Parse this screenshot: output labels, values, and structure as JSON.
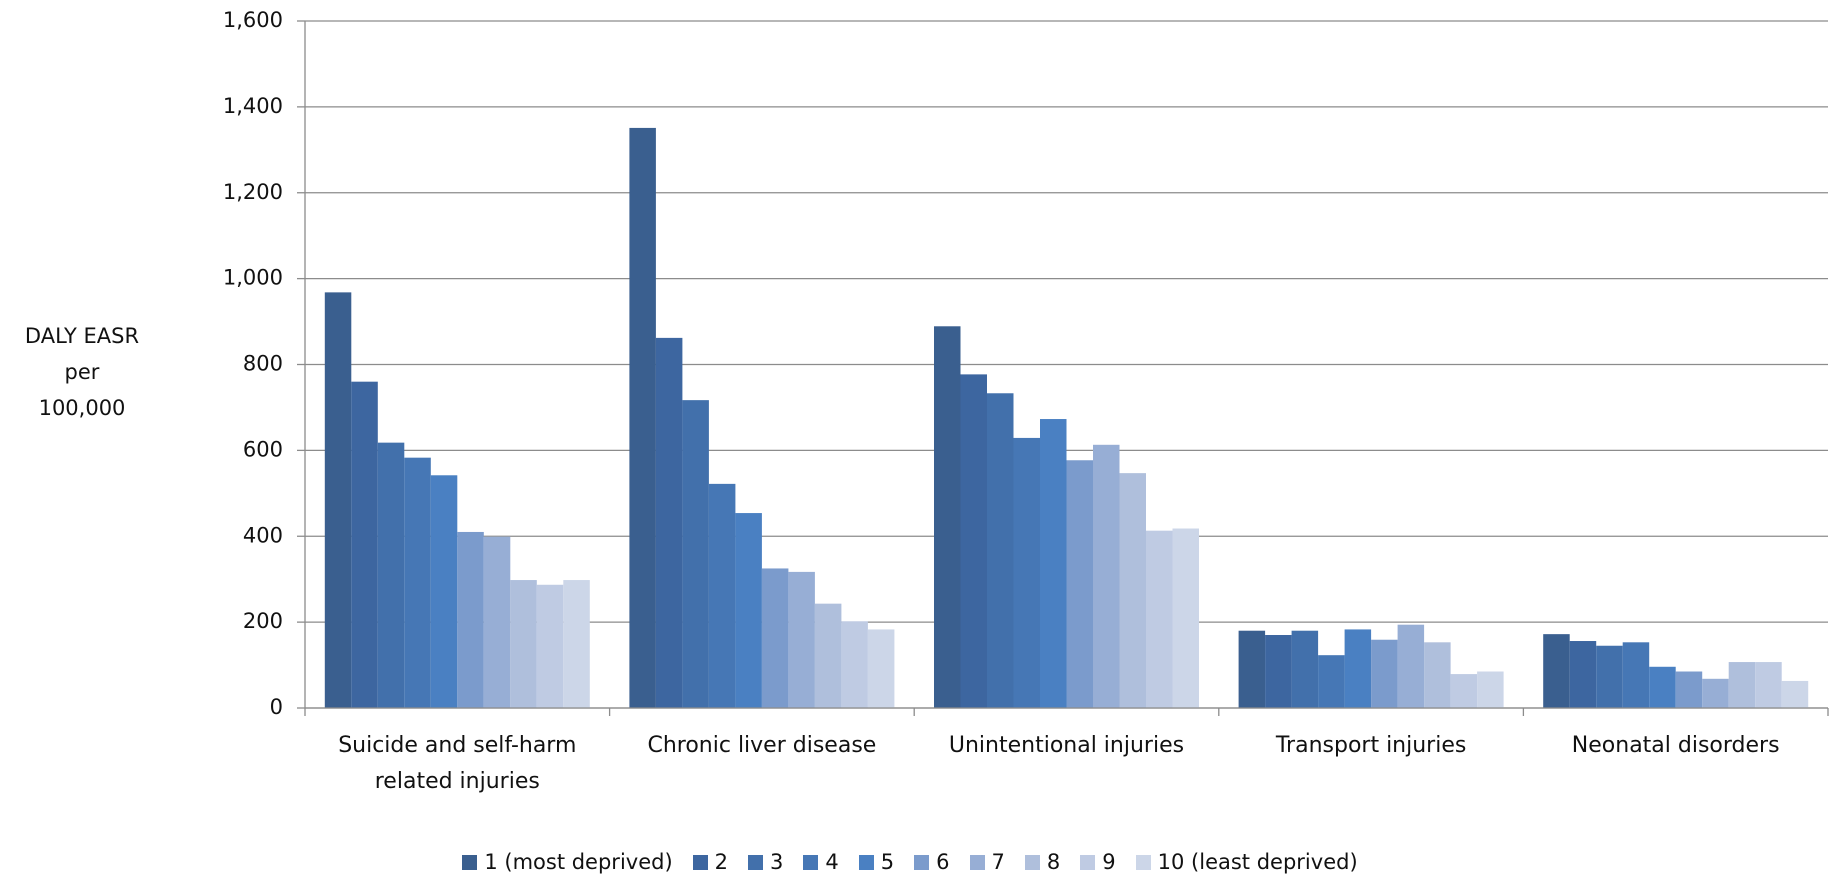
{
  "chart_data": {
    "type": "bar",
    "y_label": [
      "DALY EASR",
      "per",
      "100,000"
    ],
    "categories": [
      "Suicide and self-harm related injuries",
      "Chronic liver disease",
      "Unintentional injuries",
      "Transport injuries",
      "Neonatal disorders"
    ],
    "series": [
      {
        "name": "1 (most deprived)",
        "color": "#3a5f8f",
        "values": [
          968,
          1351,
          889,
          180,
          172
        ]
      },
      {
        "name": "2",
        "color": "#3d66a0",
        "values": [
          760,
          862,
          777,
          170,
          156
        ]
      },
      {
        "name": "3",
        "color": "#4270ab",
        "values": [
          618,
          717,
          733,
          180,
          145
        ]
      },
      {
        "name": "4",
        "color": "#4677b5",
        "values": [
          583,
          522,
          629,
          123,
          153
        ]
      },
      {
        "name": "5",
        "color": "#4a80c2",
        "values": [
          542,
          454,
          673,
          183,
          96
        ]
      },
      {
        "name": "6",
        "color": "#7b9bcc",
        "values": [
          410,
          325,
          577,
          159,
          85
        ]
      },
      {
        "name": "7",
        "color": "#97aed5",
        "values": [
          399,
          317,
          613,
          194,
          68
        ]
      },
      {
        "name": "8",
        "color": "#afbfdc",
        "values": [
          298,
          243,
          547,
          153,
          107
        ]
      },
      {
        "name": "9",
        "color": "#bfcbe3",
        "values": [
          287,
          202,
          413,
          79,
          107
        ]
      },
      {
        "name": "10 (least deprived)",
        "color": "#ccd6e8",
        "values": [
          298,
          183,
          418,
          85,
          63
        ]
      }
    ],
    "ylim": [
      0,
      1600
    ],
    "yticks": [
      0,
      200,
      400,
      600,
      800,
      {
        "value": 1000,
        "label": "1,000"
      },
      {
        "value": 1200,
        "label": "1,200"
      },
      {
        "value": 1400,
        "label": "1,400"
      },
      {
        "value": 1600,
        "label": "1,600"
      }
    ],
    "grid": true
  }
}
